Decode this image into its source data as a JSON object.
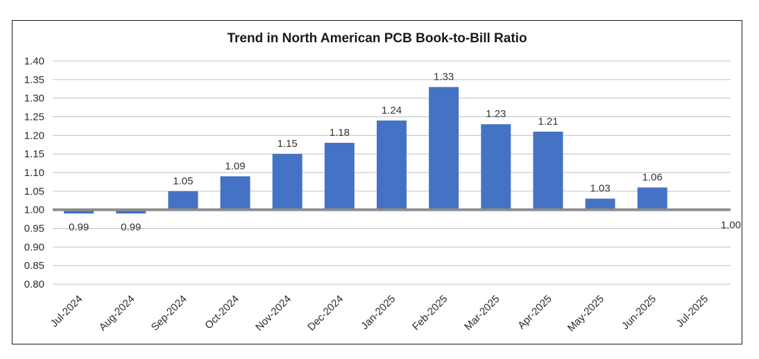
{
  "chart_data": {
    "type": "bar",
    "title": "Trend in North American PCB Book-to-Bill Ratio",
    "categories": [
      "Jul-2024",
      "Aug-2024",
      "Sep-2024",
      "Oct-2024",
      "Nov-2024",
      "Dec-2024",
      "Jan-2025",
      "Feb-2025",
      "Mar-2025",
      "Apr-2025",
      "May-2025",
      "Jun-2025",
      "Jul-2025"
    ],
    "values": [
      0.99,
      0.99,
      1.05,
      1.09,
      1.15,
      1.18,
      1.24,
      1.33,
      1.23,
      1.21,
      1.03,
      1.06,
      1.0
    ],
    "data_labels": [
      "0.99",
      "0.99",
      "1.05",
      "1.09",
      "1.15",
      "1.18",
      "1.24",
      "1.33",
      "1.23",
      "1.21",
      "1.03",
      "1.06",
      "1.00"
    ],
    "baseline": 1.0,
    "ylim": [
      0.8,
      1.4
    ],
    "yticks": [
      "0.80",
      "0.85",
      "0.90",
      "0.95",
      "1.00",
      "1.05",
      "1.10",
      "1.15",
      "1.20",
      "1.25",
      "1.30",
      "1.35",
      "1.40"
    ],
    "xlabel": "",
    "ylabel": "",
    "grid": true,
    "legend": "none",
    "bar_color": "#4472c4",
    "grid_color": "#bfbfbf",
    "baseline_color": "#8c8c8c"
  }
}
